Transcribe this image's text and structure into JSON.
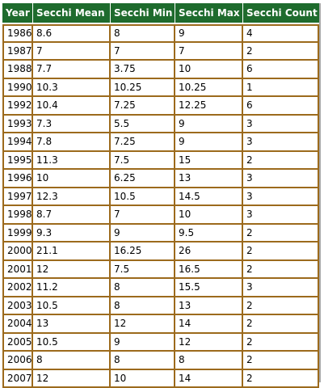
{
  "table": {
    "headers": [
      "Year",
      "Secchi Mean",
      "Secchi Min",
      "Secchi Max",
      "Secchi Count"
    ],
    "rows": [
      [
        "1986",
        "8.6",
        "8",
        "9",
        "4"
      ],
      [
        "1987",
        "7",
        "7",
        "7",
        "2"
      ],
      [
        "1988",
        "7.7",
        "3.75",
        "10",
        "6"
      ],
      [
        "1990",
        "10.3",
        "10.25",
        "10.25",
        "1"
      ],
      [
        "1992",
        "10.4",
        "7.25",
        "12.25",
        "6"
      ],
      [
        "1993",
        "7.3",
        "5.5",
        "9",
        "3"
      ],
      [
        "1994",
        "7.8",
        "7.25",
        "9",
        "3"
      ],
      [
        "1995",
        "11.3",
        "7.5",
        "15",
        "2"
      ],
      [
        "1996",
        "10",
        "6.25",
        "13",
        "3"
      ],
      [
        "1997",
        "12.3",
        "10.5",
        "14.5",
        "3"
      ],
      [
        "1998",
        "8.7",
        "7",
        "10",
        "3"
      ],
      [
        "1999",
        "9.3",
        "9",
        "9.5",
        "2"
      ],
      [
        "2000",
        "21.1",
        "16.25",
        "26",
        "2"
      ],
      [
        "2001",
        "12",
        "7.5",
        "16.5",
        "2"
      ],
      [
        "2002",
        "11.2",
        "8",
        "15.5",
        "3"
      ],
      [
        "2003",
        "10.5",
        "8",
        "13",
        "2"
      ],
      [
        "2004",
        "13",
        "12",
        "14",
        "2"
      ],
      [
        "2005",
        "10.5",
        "9",
        "12",
        "2"
      ],
      [
        "2006",
        "8",
        "8",
        "8",
        "2"
      ],
      [
        "2007",
        "12",
        "10",
        "14",
        "2"
      ]
    ]
  },
  "colors": {
    "header_background": "#1e6b2d",
    "header_text": "#ffffff",
    "cell_border": "#9c6a1c"
  }
}
